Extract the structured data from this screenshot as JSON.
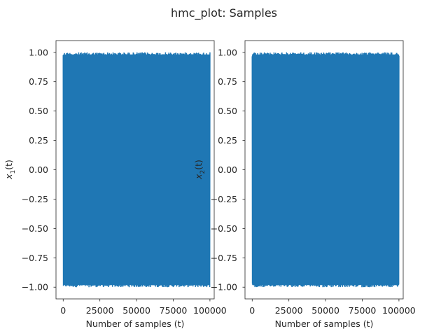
{
  "chart_data": {
    "suptitle": "hmc_plot: Samples",
    "type": "line",
    "color": "#1f77b4",
    "panels": [
      {
        "xlabel": "Number of samples (t)",
        "ylabel_base": "x",
        "ylabel_sub": "1",
        "ylabel_arg": "(t)",
        "xlim": [
          -4900,
          102900
        ],
        "ylim": [
          -1.1,
          1.1
        ],
        "xticks": [
          0,
          25000,
          50000,
          75000,
          100000
        ],
        "xtick_labels": [
          "0",
          "25000",
          "50000",
          "75000",
          "100000"
        ],
        "yticks": [
          1.0,
          0.75,
          0.5,
          0.25,
          0.0,
          -0.25,
          -0.5,
          -0.75,
          -1.0
        ],
        "ytick_labels": [
          "1.00",
          "0.75",
          "0.50",
          "0.25",
          "0.00",
          "−0.25",
          "−0.50",
          "−0.75",
          "−1.00"
        ],
        "samples": 100000,
        "value_range": [
          -1.0,
          1.0
        ]
      },
      {
        "xlabel": "Number of samples (t)",
        "ylabel_base": "x",
        "ylabel_sub": "2",
        "ylabel_arg": "(t)",
        "xlim": [
          -4900,
          102900
        ],
        "ylim": [
          -1.1,
          1.1
        ],
        "xticks": [
          0,
          25000,
          50000,
          75000,
          100000
        ],
        "xtick_labels": [
          "0",
          "25000",
          "50000",
          "75000",
          "100000"
        ],
        "yticks": [
          1.0,
          0.75,
          0.5,
          0.25,
          0.0,
          -0.25,
          -0.5,
          -0.75,
          -1.0
        ],
        "ytick_labels": [
          "1.00",
          "0.75",
          "0.50",
          "0.25",
          "0.00",
          "−0.25",
          "−0.50",
          "−0.75",
          "−1.00"
        ],
        "samples": 100000,
        "value_range": [
          -1.0,
          1.0
        ]
      }
    ]
  }
}
